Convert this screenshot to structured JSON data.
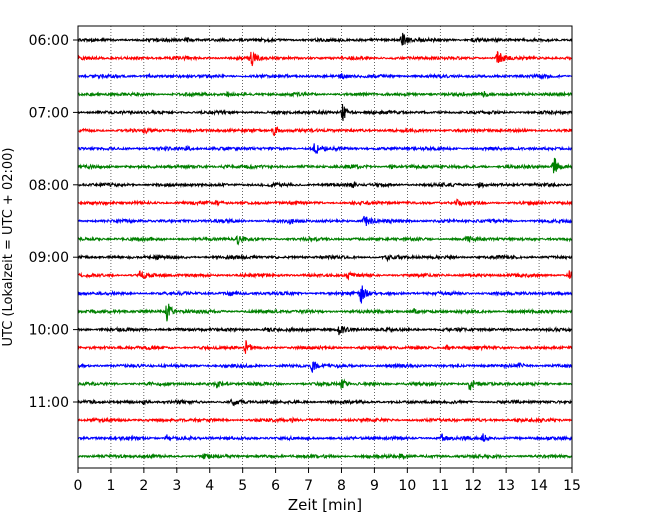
{
  "chart_data": {
    "type": "line",
    "title": "",
    "xlabel": "Zeit  [min]",
    "ylabel": "UTC (Lokalzeit = UTC + 02:00)",
    "xlim": [
      0,
      15
    ],
    "x_ticks": [
      0,
      1,
      2,
      3,
      4,
      5,
      6,
      7,
      8,
      9,
      10,
      11,
      12,
      13,
      14,
      15
    ],
    "x_tick_labels": [
      "0",
      "1",
      "2",
      "3",
      "4",
      "5",
      "6",
      "7",
      "8",
      "9",
      "10",
      "11",
      "12",
      "13",
      "14",
      "15"
    ],
    "y_tick_labels": [
      "06:00",
      "07:00",
      "08:00",
      "09:00",
      "10:00",
      "11:00"
    ],
    "y_tick_trace_index": [
      0,
      4,
      8,
      12,
      16,
      20
    ],
    "grid": {
      "x": true,
      "y": false
    },
    "trace_colors": [
      "#000000",
      "#ff0000",
      "#0000ff",
      "#008000"
    ],
    "traces": [
      {
        "start": "06:00",
        "events": [
          {
            "t": 9.85,
            "amp": 0.9
          },
          {
            "t": 3.3,
            "amp": 0.3
          },
          {
            "t": 12.0,
            "amp": 0.25
          }
        ]
      },
      {
        "start": "06:15",
        "events": [
          {
            "t": 5.25,
            "amp": 1.0
          },
          {
            "t": 12.75,
            "amp": 0.85
          }
        ]
      },
      {
        "start": "06:30",
        "events": [
          {
            "t": 8.0,
            "amp": 0.3
          },
          {
            "t": 2.1,
            "amp": 0.2
          }
        ]
      },
      {
        "start": "06:45",
        "events": [
          {
            "t": 12.3,
            "amp": 0.35
          },
          {
            "t": 4.5,
            "amp": 0.25
          }
        ]
      },
      {
        "start": "07:00",
        "events": [
          {
            "t": 8.05,
            "amp": 1.1
          }
        ]
      },
      {
        "start": "07:15",
        "events": [
          {
            "t": 5.95,
            "amp": 0.7
          },
          {
            "t": 2.0,
            "amp": 0.2
          }
        ]
      },
      {
        "start": "07:30",
        "events": [
          {
            "t": 7.2,
            "amp": 0.8
          },
          {
            "t": 3.3,
            "amp": 0.3
          }
        ]
      },
      {
        "start": "07:45",
        "events": [
          {
            "t": 14.45,
            "amp": 1.3
          },
          {
            "t": 4.4,
            "amp": 0.35
          },
          {
            "t": 9.5,
            "amp": 0.25
          }
        ]
      },
      {
        "start": "08:00",
        "events": [
          {
            "t": 8.3,
            "amp": 0.35
          },
          {
            "t": 12.2,
            "amp": 0.3
          }
        ]
      },
      {
        "start": "08:15",
        "events": [
          {
            "t": 4.2,
            "amp": 0.3
          },
          {
            "t": 11.5,
            "amp": 0.25
          }
        ]
      },
      {
        "start": "08:30",
        "events": [
          {
            "t": 8.7,
            "amp": 0.9
          },
          {
            "t": 6.4,
            "amp": 0.25
          }
        ]
      },
      {
        "start": "08:45",
        "events": [
          {
            "t": 4.85,
            "amp": 0.45
          },
          {
            "t": 11.8,
            "amp": 0.3
          }
        ]
      },
      {
        "start": "09:00",
        "events": [
          {
            "t": 9.4,
            "amp": 0.25
          },
          {
            "t": 2.4,
            "amp": 0.2
          }
        ]
      },
      {
        "start": "09:15",
        "events": [
          {
            "t": 1.9,
            "amp": 0.6
          },
          {
            "t": 14.9,
            "amp": 0.55
          },
          {
            "t": 8.2,
            "amp": 0.3
          }
        ]
      },
      {
        "start": "09:30",
        "events": [
          {
            "t": 8.6,
            "amp": 1.1
          },
          {
            "t": 4.6,
            "amp": 0.25
          }
        ]
      },
      {
        "start": "09:45",
        "events": [
          {
            "t": 2.7,
            "amp": 1.2
          },
          {
            "t": 10.2,
            "amp": 0.25
          }
        ]
      },
      {
        "start": "10:00",
        "events": [
          {
            "t": 7.95,
            "amp": 0.8
          },
          {
            "t": 5.7,
            "amp": 0.35
          }
        ]
      },
      {
        "start": "10:15",
        "events": [
          {
            "t": 5.1,
            "amp": 0.7
          },
          {
            "t": 11.2,
            "amp": 0.25
          }
        ]
      },
      {
        "start": "10:30",
        "events": [
          {
            "t": 7.1,
            "amp": 0.8
          },
          {
            "t": 13.4,
            "amp": 0.3
          }
        ]
      },
      {
        "start": "10:45",
        "events": [
          {
            "t": 11.9,
            "amp": 0.75
          },
          {
            "t": 8.0,
            "amp": 0.55
          },
          {
            "t": 4.2,
            "amp": 0.45
          }
        ]
      },
      {
        "start": "11:00",
        "events": [
          {
            "t": 4.7,
            "amp": 0.5
          },
          {
            "t": 2.0,
            "amp": 0.25
          }
        ]
      },
      {
        "start": "11:15",
        "events": [
          {
            "t": 13.3,
            "amp": 0.25
          },
          {
            "t": 6.5,
            "amp": 0.2
          }
        ]
      },
      {
        "start": "11:30",
        "events": [
          {
            "t": 11.05,
            "amp": 0.5
          },
          {
            "t": 12.3,
            "amp": 0.45
          },
          {
            "t": 2.7,
            "amp": 0.35
          }
        ]
      },
      {
        "start": "11:45",
        "events": [
          {
            "t": 3.8,
            "amp": 0.25
          },
          {
            "t": 9.8,
            "amp": 0.2
          }
        ]
      }
    ]
  }
}
